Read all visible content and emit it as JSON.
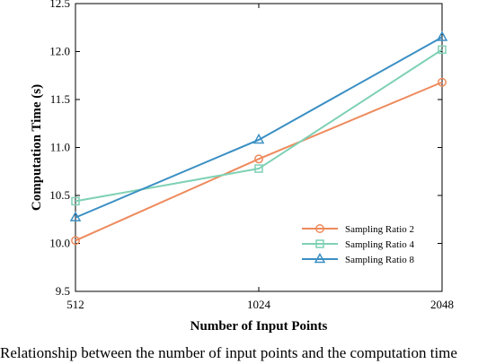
{
  "chart_data": {
    "type": "line",
    "title": "",
    "xlabel": "Number of Input Points",
    "ylabel": "Computation Time (s)",
    "x": [
      512,
      1024,
      2048
    ],
    "x_tick_labels": [
      "512",
      "1024",
      "2048"
    ],
    "ylim": [
      9.5,
      12.5
    ],
    "y_ticks": [
      9.5,
      10.0,
      10.5,
      11.0,
      11.5,
      12.0,
      12.5
    ],
    "y_tick_labels": [
      "9.5",
      "10.0",
      "10.5",
      "11.0",
      "11.5",
      "12.0",
      "12.5"
    ],
    "grid": false,
    "legend_position": "lower-right",
    "series": [
      {
        "name": "Sampling Ratio 2",
        "values": [
          10.03,
          10.88,
          11.68
        ],
        "color": "#ee8a5c",
        "marker": "circle"
      },
      {
        "name": "Sampling Ratio 4",
        "values": [
          10.44,
          10.78,
          12.02
        ],
        "color": "#7fd1b4",
        "marker": "square"
      },
      {
        "name": "Sampling Ratio 8",
        "values": [
          10.27,
          11.08,
          12.15
        ],
        "color": "#3a8fc4",
        "marker": "triangle"
      }
    ]
  },
  "caption": "Relationship between the number of input points and the computation time"
}
